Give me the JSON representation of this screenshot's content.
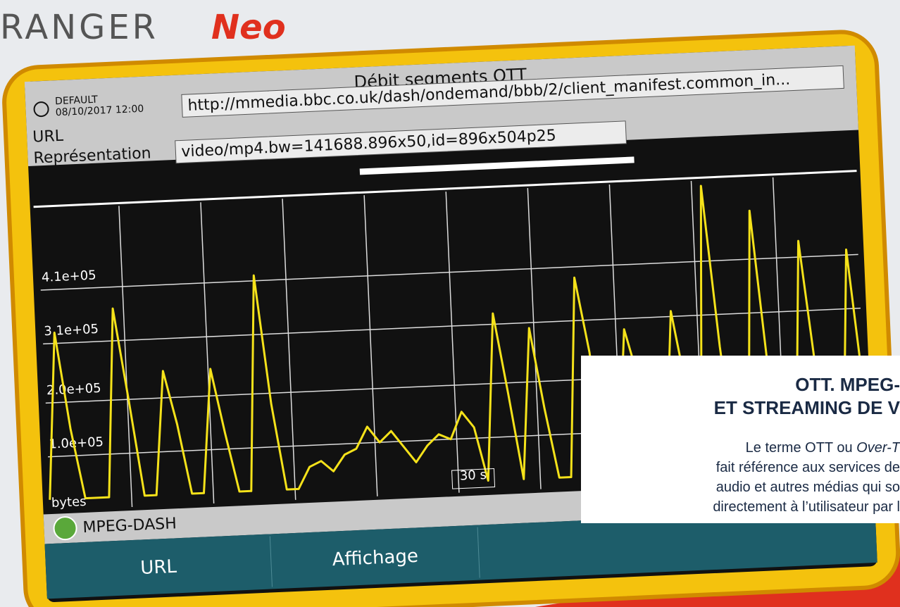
{
  "brand": {
    "name": "RANGER",
    "suffix": "Neo"
  },
  "header": {
    "title": "Débit segments OTT",
    "profile": "DEFAULT",
    "datetime": "08/10/2017 12:00"
  },
  "url": {
    "label": "URL",
    "value": "http://mmedia.bbc.co.uk/dash/ondemand/bbb/2/client_manifest.common_in..."
  },
  "representation": {
    "label": "Représentation",
    "value": "video/mp4.bw=141688.896x50,id=896x504p25"
  },
  "chart_data": {
    "type": "line",
    "y_label": "bytes",
    "x_label": "30 s",
    "color": "#f5e21a",
    "grid": true,
    "ylim": [
      0,
      560000
    ],
    "yticks": [
      {
        "value": 100000,
        "label": "1.0e+05"
      },
      {
        "value": 200000,
        "label": "2.0e+05"
      },
      {
        "value": 310000,
        "label": "3.1e+05"
      },
      {
        "value": 410000,
        "label": "4.1e+05"
      }
    ],
    "values": [
      20000,
      330000,
      150000,
      20000,
      20000,
      20000,
      370000,
      200000,
      20000,
      20000,
      250000,
      150000,
      20000,
      20000,
      250000,
      130000,
      20000,
      20000,
      420000,
      180000,
      20000,
      20000,
      60000,
      70000,
      50000,
      80000,
      90000,
      130000,
      100000,
      120000,
      90000,
      60000,
      90000,
      110000,
      100000,
      150000,
      120000,
      20000,
      330000,
      180000,
      20000,
      300000,
      150000,
      20000,
      20000,
      390000,
      250000,
      20000,
      20000,
      290000,
      200000,
      20000,
      20000,
      320000,
      180000,
      20000,
      550000,
      250000,
      20000,
      20000,
      500000,
      200000,
      20000,
      20000,
      440000,
      200000,
      20000,
      20000,
      420000,
      150000
    ]
  },
  "status": {
    "protocol": "MPEG-DASH"
  },
  "softkeys": [
    "URL",
    "Affichage"
  ],
  "overlay": {
    "heading": [
      "OTT. MPEG-",
      "ET STREAMING DE V"
    ],
    "body": [
      [
        "Le terme OTT ou ",
        "Over-T"
      ],
      [
        "fait référence aux services de"
      ],
      [
        "audio et autres médias qui so"
      ],
      [
        "directement à l’utilisateur par l"
      ]
    ]
  }
}
